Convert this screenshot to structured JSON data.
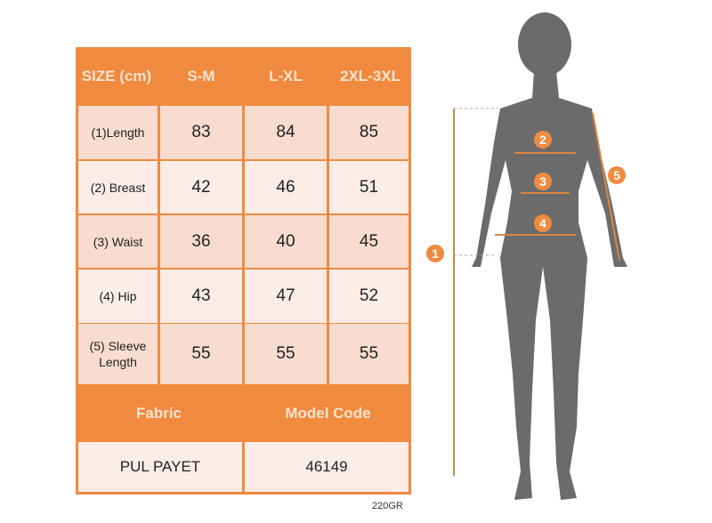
{
  "table": {
    "corner_label": "SIZE (cm)",
    "sizes": [
      "S-M",
      "L-XL",
      "2XL-3XL"
    ],
    "rows": [
      {
        "label": "(1)Length",
        "values": [
          "83",
          "84",
          "85"
        ]
      },
      {
        "label": "(2) Breast",
        "values": [
          "42",
          "46",
          "51"
        ]
      },
      {
        "label": "(3) Waist",
        "values": [
          "36",
          "40",
          "45"
        ]
      },
      {
        "label": "(4) Hip",
        "values": [
          "43",
          "47",
          "52"
        ]
      },
      {
        "label": "(5) Sleeve Length",
        "values": [
          "55",
          "55",
          "55"
        ]
      }
    ],
    "fabric_label": "Fabric",
    "model_code_label": "Model Code",
    "fabric_value": "PUL PAYET",
    "model_code_value": "46149"
  },
  "weight_note": "220GR",
  "figure": {
    "markers": [
      "1",
      "2",
      "3",
      "4",
      "5"
    ]
  },
  "colors": {
    "accent": "#ef8a3f",
    "silhouette": "#6b6b6b",
    "row_dark": "#f8dccf",
    "row_light": "#fbece6"
  }
}
